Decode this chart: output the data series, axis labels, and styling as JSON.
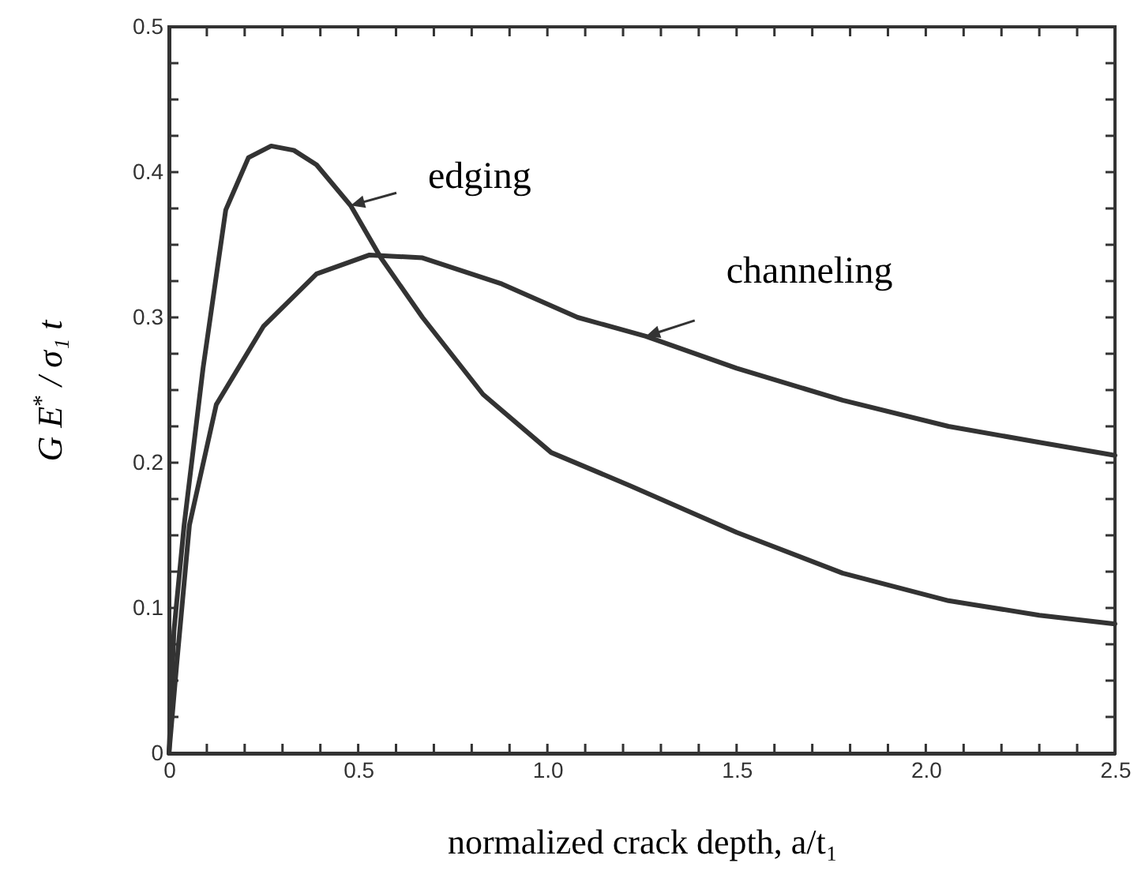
{
  "chart_data": {
    "type": "line",
    "xlabel": "normalized crack depth, a/t₁",
    "ylabel": "G E$^{*}$ / σ₁ t",
    "series": [
      {
        "color": "#333333",
        "x": [
          0,
          0.013,
          0.04,
          0.09,
          0.15,
          0.21,
          0.27,
          0.33,
          0.39,
          0.48,
          0.56,
          0.67,
          0.83,
          1.01,
          1.22,
          1.5,
          1.78,
          2.06,
          2.3,
          2.5
        ],
        "values": [
          0,
          0.084,
          0.157,
          0.265,
          0.374,
          0.41,
          0.418,
          0.415,
          0.405,
          0.377,
          0.341,
          0.3,
          0.247,
          0.207,
          0.184,
          0.152,
          0.124,
          0.105,
          0.095,
          0.089
        ]
      },
      {
        "color": "#333333",
        "x": [
          0,
          0.02,
          0.054,
          0.125,
          0.25,
          0.39,
          0.53,
          0.67,
          0.88,
          1.08,
          1.26,
          1.5,
          1.78,
          2.06,
          2.3,
          2.5
        ],
        "values": [
          0,
          0.06,
          0.157,
          0.24,
          0.294,
          0.33,
          0.343,
          0.341,
          0.323,
          0.3,
          0.287,
          0.265,
          0.243,
          0.225,
          0.214,
          0.205
        ]
      }
    ],
    "annotations": [
      {
        "text": "edging",
        "x": 0.48,
        "y": 0.377
      },
      {
        "text": "channeling",
        "x": 1.26,
        "y": 0.287
      }
    ],
    "xlim": [
      0,
      2.5
    ],
    "ylim": [
      0,
      0.5
    ],
    "xticks": [
      0,
      {
        "value": 0.1,
        "label": null
      },
      {
        "value": 0.2,
        "label": null
      },
      {
        "value": 0.3,
        "label": null
      },
      {
        "value": 0.4,
        "label": null
      },
      0.5,
      {
        "value": 0.6,
        "label": null
      },
      {
        "value": 0.7,
        "label": null
      },
      {
        "value": 0.8,
        "label": null
      },
      {
        "value": 0.9,
        "label": null
      },
      {
        "value": 1,
        "label": "1.0"
      },
      {
        "value": 1.1,
        "label": null
      },
      {
        "value": 1.2,
        "label": null
      },
      {
        "value": 1.3,
        "label": null
      },
      {
        "value": 1.4,
        "label": null
      },
      1.5,
      {
        "value": 1.6,
        "label": null
      },
      {
        "value": 1.7,
        "label": null
      },
      {
        "value": 1.8,
        "label": null
      },
      {
        "value": 1.9,
        "label": null
      },
      {
        "value": 2,
        "label": "2.0"
      },
      {
        "value": 2.1,
        "label": null
      },
      {
        "value": 2.2,
        "label": null
      },
      {
        "value": 2.3,
        "label": null
      },
      {
        "value": 2.4,
        "label": null
      },
      2.5
    ],
    "yticks": [
      0,
      {
        "value": 0.025,
        "label": null
      },
      {
        "value": 0.05,
        "label": null
      },
      {
        "value": 0.075,
        "label": null
      },
      0.1,
      {
        "value": 0.125,
        "label": null
      },
      {
        "value": 0.15,
        "label": null
      },
      {
        "value": 0.175,
        "label": null
      },
      0.2,
      {
        "value": 0.225,
        "label": null
      },
      {
        "value": 0.25,
        "label": null
      },
      {
        "value": 0.275,
        "label": null
      },
      0.3,
      {
        "value": 0.325,
        "label": null
      },
      {
        "value": 0.35,
        "label": null
      },
      {
        "value": 0.375,
        "label": null
      },
      0.4,
      {
        "value": 0.425,
        "label": null
      },
      {
        "value": 0.45,
        "label": null
      },
      {
        "value": 0.475,
        "label": null
      },
      0.5
    ],
    "grid": false,
    "marker": "none",
    "line_style": "solid"
  }
}
